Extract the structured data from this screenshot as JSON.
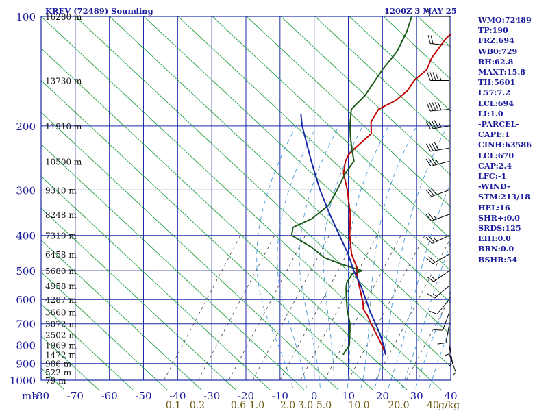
{
  "title": "KREV (72489) Sounding",
  "date": "1200Z  3 MAY 25",
  "pressure_unit": "mb",
  "mixing_unit": "g/kg",
  "colors": {
    "frame": "#1c2aa8",
    "isotherm_grid": "#1c2aa8",
    "dry_adiabat": "#20a040",
    "moist_adiabat": "#4a9ad8",
    "mixing_ratio": "#404040",
    "temperature": "#c00000",
    "dewpoint": "#1a5a1a",
    "parcel": "#1a2aa8",
    "axis_text": "#1a1a9c",
    "mixing_text": "#6b5a10"
  },
  "stats": [
    "WMO:72489",
    "TP:190",
    "FRZ:694",
    "WB0:729",
    "RH:62.8",
    "MAXT:15.8",
    "TH:5601",
    "L57:7.2",
    "LCL:694",
    "LI:1.0",
    "-PARCEL-",
    "CAPE:1",
    "CINH:63586",
    "LCL:670",
    "CAP:2.4",
    "LFC:-1",
    "-WIND-",
    "STM:213/18",
    "HEL:16",
    "SHR+:0.0",
    "SRDS:125",
    "EHI:0.0",
    "BRN:0.0",
    "BSHR:54"
  ],
  "chart_data": {
    "type": "line",
    "title": "KREV (72489) Sounding",
    "xlabel": "",
    "ylabel": "mb",
    "ylim": [
      1000,
      100
    ],
    "xlim": [
      -80,
      40
    ],
    "yscale": "log",
    "pressure_ticks": [
      100,
      200,
      300,
      400,
      500,
      600,
      700,
      800,
      900,
      1000
    ],
    "temp_ticks": [
      -80,
      -70,
      -60,
      -50,
      -40,
      -30,
      -20,
      -10,
      0,
      10,
      20,
      30,
      40
    ],
    "height_labels": [
      {
        "p": 100,
        "label": "16280 m"
      },
      {
        "p": 150,
        "label": "13730 m"
      },
      {
        "p": 200,
        "label": "11910 m"
      },
      {
        "p": 250,
        "label": "10500 m"
      },
      {
        "p": 300,
        "label": "9310 m"
      },
      {
        "p": 350,
        "label": "8248 m"
      },
      {
        "p": 400,
        "label": "7310 m"
      },
      {
        "p": 450,
        "label": "6458 m"
      },
      {
        "p": 500,
        "label": "5680 m"
      },
      {
        "p": 550,
        "label": "4958 m"
      },
      {
        "p": 600,
        "label": "4287 m"
      },
      {
        "p": 650,
        "label": "3660 m"
      },
      {
        "p": 700,
        "label": "3072 m"
      },
      {
        "p": 750,
        "label": "2502 m"
      },
      {
        "p": 800,
        "label": "1969 m"
      },
      {
        "p": 850,
        "label": "1472 m"
      },
      {
        "p": 900,
        "label": "986 m"
      },
      {
        "p": 950,
        "label": "522 m"
      },
      {
        "p": 1000,
        "label": "79 m"
      }
    ],
    "mixing_ratio_labels": [
      "0.1",
      "0.2",
      "0.6",
      "1.0",
      "2.0",
      "3.0",
      "5.0",
      "10.0",
      "20.0",
      "40"
    ],
    "series": [
      {
        "role": "temperature",
        "points": [
          [
            851,
            13.5
          ],
          [
            800,
            9.5
          ],
          [
            750,
            5.0
          ],
          [
            700,
            0.2
          ],
          [
            660,
            -3.8
          ],
          [
            640,
            -6.2
          ],
          [
            610,
            -8.6
          ],
          [
            590,
            -10.5
          ],
          [
            550,
            -14.5
          ],
          [
            515,
            -18.2
          ],
          [
            490,
            -20.5
          ],
          [
            450,
            -26.0
          ],
          [
            400,
            -32.0
          ],
          [
            350,
            -38.0
          ],
          [
            300,
            -46.0
          ],
          [
            270,
            -52.0
          ],
          [
            250,
            -55.0
          ],
          [
            240,
            -56.0
          ],
          [
            230,
            -56.0
          ],
          [
            210,
            -55.5
          ],
          [
            195,
            -59.0
          ],
          [
            180,
            -60.5
          ],
          [
            170,
            -58.0
          ],
          [
            160,
            -57.5
          ],
          [
            150,
            -58.5
          ],
          [
            140,
            -58.0
          ],
          [
            130,
            -60.0
          ],
          [
            115,
            -61.5
          ],
          [
            100,
            -61.0
          ]
        ]
      },
      {
        "role": "dewpoint",
        "points": [
          [
            851,
            1.0
          ],
          [
            800,
            0.0
          ],
          [
            700,
            -6.0
          ],
          [
            640,
            -11.0
          ],
          [
            590,
            -15.0
          ],
          [
            560,
            -17.5
          ],
          [
            540,
            -19.0
          ],
          [
            510,
            -20.0
          ],
          [
            500,
            -18.0
          ],
          [
            480,
            -26.0
          ],
          [
            460,
            -33.0
          ],
          [
            430,
            -40.0
          ],
          [
            400,
            -49.0
          ],
          [
            380,
            -51.0
          ],
          [
            360,
            -48.0
          ],
          [
            330,
            -47.0
          ],
          [
            300,
            -49.0
          ],
          [
            270,
            -51.5
          ],
          [
            250,
            -52.5
          ],
          [
            230,
            -57.0
          ],
          [
            215,
            -60.5
          ],
          [
            200,
            -64.0
          ],
          [
            180,
            -68.5
          ],
          [
            165,
            -68.5
          ],
          [
            140,
            -71.0
          ],
          [
            125,
            -72.0
          ],
          [
            110,
            -75.0
          ],
          [
            100,
            -78.0
          ]
        ]
      },
      {
        "role": "parcel",
        "points": [
          [
            851,
            13.5
          ],
          [
            800,
            10.0
          ],
          [
            750,
            6.0
          ],
          [
            700,
            1.5
          ],
          [
            650,
            -3.5
          ],
          [
            600,
            -8.5
          ],
          [
            550,
            -14.0
          ],
          [
            500,
            -20.5
          ],
          [
            450,
            -27.0
          ],
          [
            400,
            -35.0
          ],
          [
            350,
            -44.0
          ],
          [
            300,
            -54.0
          ],
          [
            250,
            -65.0
          ],
          [
            200,
            -78.0
          ],
          [
            185,
            -82.0
          ]
        ]
      }
    ],
    "wind_barbs": [
      {
        "p": 100,
        "dir": 270,
        "kt": 10
      },
      {
        "p": 120,
        "dir": 275,
        "kt": 20
      },
      {
        "p": 150,
        "dir": 270,
        "kt": 45
      },
      {
        "p": 180,
        "dir": 265,
        "kt": 50
      },
      {
        "p": 200,
        "dir": 260,
        "kt": 45
      },
      {
        "p": 230,
        "dir": 260,
        "kt": 40
      },
      {
        "p": 250,
        "dir": 255,
        "kt": 35
      },
      {
        "p": 300,
        "dir": 250,
        "kt": 30
      },
      {
        "p": 350,
        "dir": 250,
        "kt": 25
      },
      {
        "p": 400,
        "dir": 245,
        "kt": 25
      },
      {
        "p": 450,
        "dir": 240,
        "kt": 20
      },
      {
        "p": 500,
        "dir": 235,
        "kt": 15
      },
      {
        "p": 550,
        "dir": 230,
        "kt": 15
      },
      {
        "p": 600,
        "dir": 220,
        "kt": 10
      },
      {
        "p": 650,
        "dir": 200,
        "kt": 10
      },
      {
        "p": 700,
        "dir": 190,
        "kt": 10
      },
      {
        "p": 750,
        "dir": 180,
        "kt": 5
      },
      {
        "p": 800,
        "dir": 170,
        "kt": 5
      },
      {
        "p": 850,
        "dir": 160,
        "kt": 5
      }
    ]
  }
}
